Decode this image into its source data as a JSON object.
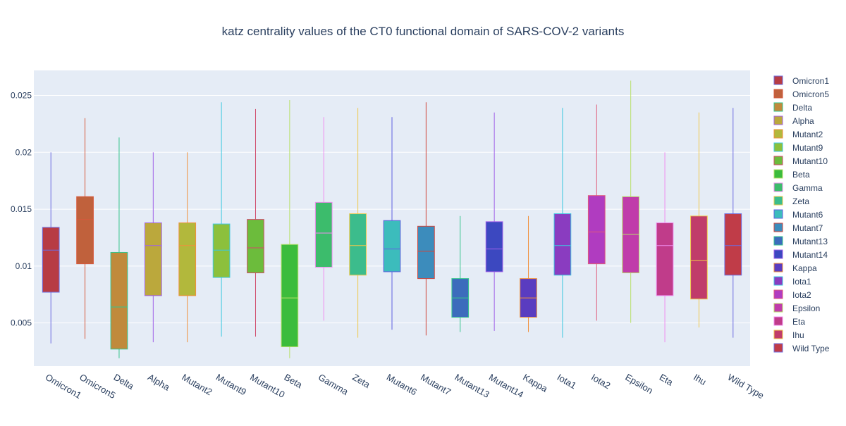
{
  "chart_data": {
    "type": "box",
    "title": "katz centrality values of the CT0 functional domain of SARS-COV-2 variants",
    "xlabel": "",
    "ylabel": "",
    "ylim": [
      0.0012,
      0.0272
    ],
    "y_ticks": [
      0.005,
      0.01,
      0.015,
      0.02,
      0.025
    ],
    "y_tick_labels": [
      "0.005",
      "0.01",
      "0.015",
      "0.02",
      "0.025"
    ],
    "grid": true,
    "legend_position": "right",
    "categories": [
      "Omicron1",
      "Omicron5",
      "Delta",
      "Alpha",
      "Mutant2",
      "Mutant9",
      "Mutant10",
      "Beta",
      "Gamma",
      "Zeta",
      "Mutant6",
      "Mutant7",
      "Mutant13",
      "Mutant14",
      "Kappa",
      "Iota1",
      "Iota2",
      "Epsilon",
      "Eta",
      "Ihu",
      "Wild Type"
    ],
    "series": [
      {
        "name": "Omicron1",
        "color": "#b73c44",
        "line": "#6d6de0",
        "min": 0.0032,
        "q1": 0.0077,
        "median": 0.0114,
        "q3": 0.0134,
        "max": 0.02
      },
      {
        "name": "Omicron5",
        "color": "#c0613c",
        "line": "#d65a3c",
        "min": 0.0036,
        "q1": 0.0102,
        "median": 0.0141,
        "q3": 0.0161,
        "max": 0.023
      },
      {
        "name": "Delta",
        "color": "#c08a3c",
        "line": "#36c48c",
        "min": 0.0019,
        "q1": 0.0027,
        "median": 0.0064,
        "q3": 0.0112,
        "max": 0.0213
      },
      {
        "name": "Alpha",
        "color": "#bba83c",
        "line": "#a060e8",
        "min": 0.0033,
        "q1": 0.0074,
        "median": 0.0118,
        "q3": 0.0138,
        "max": 0.02
      },
      {
        "name": "Mutant2",
        "color": "#b2b83c",
        "line": "#f0903c",
        "min": 0.0033,
        "q1": 0.0074,
        "median": 0.0118,
        "q3": 0.0138,
        "max": 0.02
      },
      {
        "name": "Mutant9",
        "color": "#8cc03c",
        "line": "#3cc8e0",
        "min": 0.0038,
        "q1": 0.009,
        "median": 0.0114,
        "q3": 0.0137,
        "max": 0.0244
      },
      {
        "name": "Mutant10",
        "color": "#6cbc3c",
        "line": "#d04a6a",
        "min": 0.0038,
        "q1": 0.0094,
        "median": 0.0116,
        "q3": 0.0141,
        "max": 0.0238
      },
      {
        "name": "Beta",
        "color": "#3cbc3c",
        "line": "#b8e06a",
        "min": 0.0019,
        "q1": 0.0029,
        "median": 0.0072,
        "q3": 0.0119,
        "max": 0.0246
      },
      {
        "name": "Gamma",
        "color": "#3cbc6c",
        "line": "#f08cf0",
        "min": 0.0052,
        "q1": 0.0099,
        "median": 0.0129,
        "q3": 0.0156,
        "max": 0.0231
      },
      {
        "name": "Zeta",
        "color": "#3cbc8c",
        "line": "#f0c84a",
        "min": 0.0037,
        "q1": 0.0092,
        "median": 0.0118,
        "q3": 0.0146,
        "max": 0.0239
      },
      {
        "name": "Mutant6",
        "color": "#3cbcbc",
        "line": "#6060e0",
        "min": 0.0044,
        "q1": 0.0095,
        "median": 0.0115,
        "q3": 0.014,
        "max": 0.0231
      },
      {
        "name": "Mutant7",
        "color": "#3c8cbc",
        "line": "#d0463c",
        "min": 0.0039,
        "q1": 0.0089,
        "median": 0.0113,
        "q3": 0.0135,
        "max": 0.0244
      },
      {
        "name": "Mutant13",
        "color": "#3c6cbc",
        "line": "#36c48c",
        "min": 0.0042,
        "q1": 0.0055,
        "median": 0.0072,
        "q3": 0.0089,
        "max": 0.0144
      },
      {
        "name": "Mutant14",
        "color": "#3c48c0",
        "line": "#a060e8",
        "min": 0.0043,
        "q1": 0.0095,
        "median": 0.0115,
        "q3": 0.0139,
        "max": 0.0235
      },
      {
        "name": "Kappa",
        "color": "#5a3cc0",
        "line": "#f0903c",
        "min": 0.0042,
        "q1": 0.0055,
        "median": 0.0072,
        "q3": 0.0089,
        "max": 0.0144
      },
      {
        "name": "Iota1",
        "color": "#8a3cc0",
        "line": "#3cc8e0",
        "min": 0.0037,
        "q1": 0.0092,
        "median": 0.0118,
        "q3": 0.0146,
        "max": 0.0239
      },
      {
        "name": "Iota2",
        "color": "#b03cc0",
        "line": "#e05a7a",
        "min": 0.0052,
        "q1": 0.0102,
        "median": 0.013,
        "q3": 0.0162,
        "max": 0.0242
      },
      {
        "name": "Epsilon",
        "color": "#c03caa",
        "line": "#b8e06a",
        "min": 0.005,
        "q1": 0.0094,
        "median": 0.0128,
        "q3": 0.0161,
        "max": 0.0263
      },
      {
        "name": "Eta",
        "color": "#c03c8a",
        "line": "#f08cf0",
        "min": 0.0033,
        "q1": 0.0074,
        "median": 0.0118,
        "q3": 0.0138,
        "max": 0.02
      },
      {
        "name": "Ihu",
        "color": "#c03c6a",
        "line": "#f0c84a",
        "min": 0.0046,
        "q1": 0.0071,
        "median": 0.0105,
        "q3": 0.0144,
        "max": 0.0235
      },
      {
        "name": "Wild Type",
        "color": "#c03c48",
        "line": "#6d6de0",
        "min": 0.0037,
        "q1": 0.0092,
        "median": 0.0118,
        "q3": 0.0146,
        "max": 0.0239
      }
    ]
  }
}
